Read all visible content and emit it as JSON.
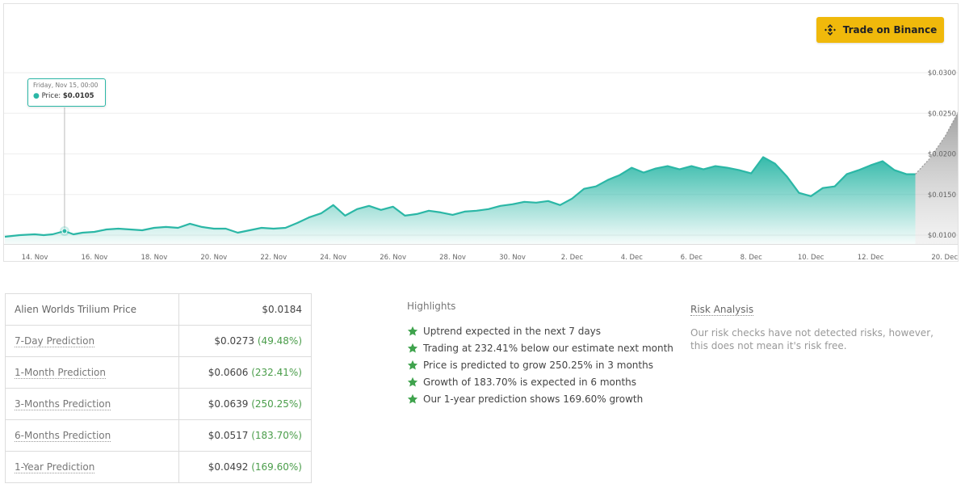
{
  "trade_button": {
    "label": "Trade on Binance",
    "icon": "binance-logo-icon",
    "color": "#f0b90b"
  },
  "tooltip": {
    "date": "Friday, Nov 15, 00:00",
    "price_label": "Price:",
    "price_value": "$0.0105"
  },
  "chart_data": {
    "type": "area",
    "x_ticks": [
      "14. Nov",
      "16. Nov",
      "18. Nov",
      "20. Nov",
      "22. Nov",
      "24. Nov",
      "26. Nov",
      "28. Nov",
      "30. Nov",
      "2. Dec",
      "4. Dec",
      "6. Dec",
      "8. Dec",
      "10. Dec",
      "12. Dec",
      "20. Dec"
    ],
    "y_ticks": [
      "$0.0100",
      "$0.0150",
      "$0.0200",
      "$0.0250",
      "$0.0300"
    ],
    "ylim": [
      0.01,
      0.03
    ],
    "series": [
      {
        "color": "#2bb7a6",
        "x": [
          13.0,
          13.5,
          14.0,
          14.3,
          14.6,
          15.0,
          15.3,
          15.6,
          16.0,
          16.4,
          16.8,
          17.2,
          17.6,
          18.0,
          18.4,
          18.8,
          19.2,
          19.6,
          20.0,
          20.4,
          20.8,
          21.2,
          21.6,
          22.0,
          22.4,
          22.8,
          23.2,
          23.6,
          24.0,
          24.4,
          24.8,
          25.2,
          25.6,
          26.0,
          26.4,
          26.8,
          27.2,
          27.6,
          28.0,
          28.4,
          28.8,
          29.2,
          29.6,
          30.0,
          30.4,
          30.8,
          31.2,
          31.6,
          32.0,
          32.4,
          32.8,
          33.2,
          33.6,
          34.0,
          34.4,
          34.8,
          35.2,
          35.6,
          36.0,
          36.4,
          36.8,
          37.2,
          37.6,
          38.0,
          38.4,
          38.8,
          39.2,
          39.6,
          40.0,
          40.4,
          40.8,
          41.2,
          41.6,
          42.0,
          42.4,
          42.8,
          43.2,
          43.5
        ],
        "values": [
          0.0098,
          0.01,
          0.0101,
          0.01,
          0.0101,
          0.0105,
          0.0101,
          0.0103,
          0.0104,
          0.0107,
          0.0108,
          0.0107,
          0.0106,
          0.0109,
          0.011,
          0.0109,
          0.0114,
          0.011,
          0.0108,
          0.0108,
          0.0103,
          0.0106,
          0.0109,
          0.0108,
          0.0109,
          0.0115,
          0.0122,
          0.0127,
          0.0137,
          0.0124,
          0.0132,
          0.0136,
          0.0131,
          0.0135,
          0.0124,
          0.0126,
          0.013,
          0.0128,
          0.0125,
          0.0129,
          0.013,
          0.0132,
          0.0136,
          0.0138,
          0.0141,
          0.014,
          0.0142,
          0.0137,
          0.0145,
          0.0157,
          0.016,
          0.0168,
          0.0174,
          0.0183,
          0.0177,
          0.0182,
          0.0185,
          0.0181,
          0.0185,
          0.0181,
          0.0185,
          0.0183,
          0.018,
          0.0176,
          0.0196,
          0.0188,
          0.0172,
          0.0152,
          0.0148,
          0.0158,
          0.016,
          0.0175,
          0.018,
          0.0186,
          0.0191,
          0.018,
          0.0175,
          0.0175
        ]
      },
      {
        "name": "",
        "color": "#999999",
        "x": [
          43.5,
          44.0,
          44.5,
          45.0
        ],
        "values": [
          0.0175,
          0.0195,
          0.0222,
          0.0256
        ]
      }
    ]
  },
  "table": {
    "rows": [
      {
        "label": "Alien Worlds Trilium Price",
        "value": "$0.0184",
        "pct": "",
        "link": false
      },
      {
        "label": "7-Day Prediction",
        "value": "$0.0273",
        "pct": "(49.48%)",
        "link": true
      },
      {
        "label": "1-Month Prediction",
        "value": "$0.0606",
        "pct": "(232.41%)",
        "link": true
      },
      {
        "label": "3-Months Prediction",
        "value": "$0.0639",
        "pct": "(250.25%)",
        "link": true
      },
      {
        "label": "6-Months Prediction",
        "value": "$0.0517",
        "pct": "(183.70%)",
        "link": true
      },
      {
        "label": "1-Year Prediction",
        "value": "$0.0492",
        "pct": "(169.60%)",
        "link": true
      }
    ]
  },
  "highlights": {
    "title": "Highlights",
    "icon": "star-icon",
    "items": [
      "Uptrend expected in the next 7 days",
      "Trading at 232.41% below our estimate next month",
      "Price is predicted to grow 250.25% in 3 months",
      "Growth of 183.70% is expected in 6 months",
      "Our 1-year prediction shows 169.60% growth"
    ]
  },
  "risk": {
    "title": "Risk Analysis",
    "text": "Our risk checks have not detected risks, however, this does not mean it's risk free."
  }
}
